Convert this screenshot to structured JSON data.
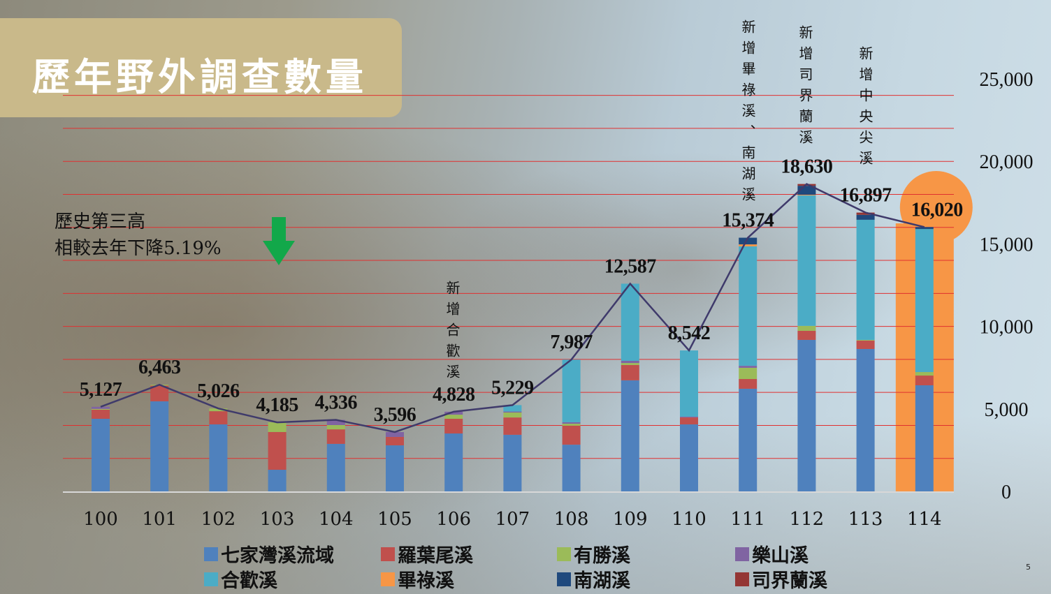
{
  "slide": {
    "title": "歷年野外調查數量",
    "note_line1": "歷史第三高",
    "note_line2": "相較去年下降5.19%",
    "down_arrow_color": "#12a84a",
    "page_number": "5",
    "annotations": [
      {
        "year": "106",
        "text": "新增合歡溪"
      },
      {
        "year": "111",
        "text": "新增畢祿溪、南湖溪"
      },
      {
        "year": "112",
        "text": "新增司界蘭溪"
      },
      {
        "year": "113",
        "text": "新增中央尖溪"
      }
    ],
    "highlight": {
      "year": "114",
      "color": "#f79646"
    }
  },
  "chart_data": {
    "type": "bar",
    "stacked": true,
    "categories": [
      "100",
      "101",
      "102",
      "103",
      "104",
      "105",
      "106",
      "107",
      "108",
      "109",
      "110",
      "111",
      "112",
      "113",
      "114"
    ],
    "totals": [
      5127,
      6463,
      5026,
      4185,
      4336,
      3596,
      4828,
      5229,
      7987,
      12587,
      8542,
      15374,
      18630,
      16897,
      16020
    ],
    "total_labels": [
      "5,127",
      "6,463",
      "5,026",
      "4,185",
      "4,336",
      "3,596",
      "4,828",
      "5,229",
      "7,987",
      "12,587",
      "8,542",
      "15,374",
      "18,630",
      "16,897",
      "16,020"
    ],
    "series": [
      {
        "name": "七家灣溪流域",
        "color": "#4f81bd",
        "values": [
          4400,
          5460,
          4060,
          1310,
          2880,
          2790,
          3510,
          3430,
          2830,
          6730,
          4060,
          6220,
          9180,
          8630,
          6430
        ]
      },
      {
        "name": "羅葉尾溪",
        "color": "#c0504d",
        "values": [
          550,
          950,
          800,
          2290,
          880,
          510,
          890,
          1050,
          1150,
          930,
          420,
          590,
          550,
          510,
          590
        ]
      },
      {
        "name": "有勝溪",
        "color": "#9bbb59",
        "values": [
          50,
          53,
          166,
          585,
          260,
          0,
          250,
          300,
          120,
          120,
          0,
          680,
          300,
          40,
          210
        ]
      },
      {
        "name": "樂山溪",
        "color": "#8064a2",
        "values": [
          127,
          0,
          0,
          0,
          316,
          296,
          178,
          60,
          90,
          130,
          50,
          120,
          0,
          0,
          0
        ]
      },
      {
        "name": "合歡溪",
        "color": "#4bacc6",
        "values": [
          0,
          0,
          0,
          0,
          0,
          0,
          0,
          389,
          3797,
          4677,
          4012,
          7240,
          7910,
          7280,
          8670
        ]
      },
      {
        "name": "畢祿溪",
        "color": "#f79646",
        "values": [
          0,
          0,
          0,
          0,
          0,
          0,
          0,
          0,
          0,
          0,
          0,
          120,
          40,
          0,
          0
        ]
      },
      {
        "name": "南湖溪",
        "color": "#1f497d",
        "values": [
          0,
          0,
          0,
          0,
          0,
          0,
          0,
          0,
          0,
          0,
          0,
          404,
          540,
          300,
          120
        ]
      },
      {
        "name": "司界蘭溪",
        "color": "#943634",
        "values": [
          0,
          0,
          0,
          0,
          0,
          0,
          0,
          0,
          0,
          0,
          0,
          0,
          110,
          137,
          0
        ]
      }
    ],
    "line_series": {
      "color": "#3f3a6b",
      "values": "totals"
    },
    "yaxis": {
      "ticks": [
        0,
        5000,
        10000,
        15000,
        20000,
        25000
      ],
      "tick_labels": [
        "0",
        "5,000",
        "10,000",
        "15,000",
        "20,000",
        "25,000"
      ],
      "ylim": [
        0,
        25000
      ],
      "position": "right"
    },
    "grid": {
      "on": true,
      "step": 2000,
      "color": "#e03030"
    },
    "legend": "bottom"
  }
}
